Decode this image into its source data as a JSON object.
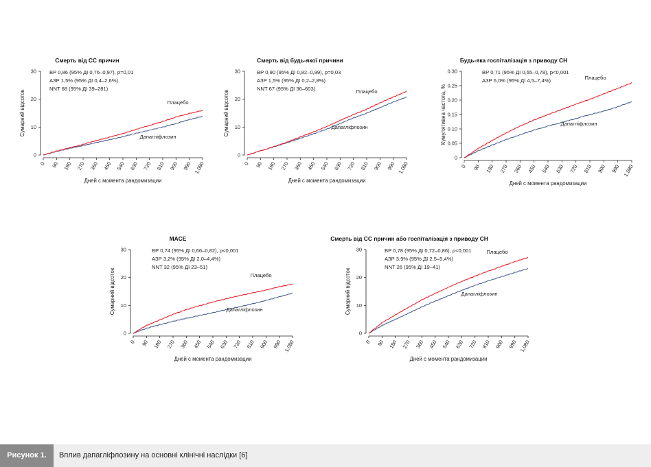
{
  "caption": {
    "tag": "Рисунок 1.",
    "text": "Вплив дапагліфлозину на основні клінічні наслідки [6]"
  },
  "colors": {
    "placebo": "#e8202a",
    "dapagliflozin": "#4a5f8f"
  },
  "chart_data": [
    {
      "type": "line",
      "title": "Смерть від СС причин",
      "stats": [
        "ВР 0,86 (95% ДІ 0,76–0,97), р=0,01",
        "АЗР 1,5% (95% ДІ 0,4–2,6%)",
        "NNT 68 (95% ДІ 39–281)"
      ],
      "ylabel": "Сумарний відсоток",
      "xlabel": "Дней с момента рандомизации",
      "xticks": [
        "0",
        "90",
        "180",
        "270",
        "360",
        "450",
        "540",
        "630",
        "720",
        "810",
        "900",
        "990",
        "1,080"
      ],
      "yticks": [
        "0",
        "10",
        "20",
        "30"
      ],
      "xlim": [
        0,
        1080
      ],
      "ylim": [
        0,
        30
      ],
      "x": [
        0,
        90,
        180,
        270,
        360,
        450,
        540,
        630,
        720,
        810,
        900,
        990,
        1080
      ],
      "series": [
        {
          "name": "Плацебо",
          "values": [
            0,
            1.4,
            2.6,
            3.8,
            5.2,
            6.4,
            7.7,
            9.2,
            10.6,
            12.0,
            13.6,
            14.9,
            16.0
          ]
        },
        {
          "name": "Дапагліфлозин",
          "values": [
            0,
            1.3,
            2.4,
            3.4,
            4.5,
            5.5,
            6.6,
            7.8,
            8.9,
            10.0,
            11.3,
            12.7,
            13.9
          ]
        }
      ]
    },
    {
      "type": "line",
      "title": "Смерть від будь-якої причини",
      "stats": [
        "ВР 0,90 (95% ДІ 0,82–0,99), р=0,03",
        "АЗР 1,5% (95% ДІ 0,2–2,8%)",
        "NNT 67 (95% ДІ 36–603)"
      ],
      "ylabel": "Сумарний відсоток",
      "xlabel": "Дней с момента рандомизации",
      "xticks": [
        "0",
        "90",
        "180",
        "270",
        "360",
        "450",
        "540",
        "630",
        "720",
        "810",
        "900",
        "990",
        "1,080"
      ],
      "yticks": [
        "0",
        "10",
        "20",
        "30"
      ],
      "xlim": [
        0,
        1080
      ],
      "ylim": [
        0,
        30
      ],
      "x": [
        0,
        90,
        180,
        270,
        360,
        450,
        540,
        630,
        720,
        810,
        900,
        990,
        1080
      ],
      "series": [
        {
          "name": "Плацебо",
          "values": [
            0,
            1.5,
            3.0,
            4.6,
            6.5,
            8.3,
            10.2,
            12.4,
            14.5,
            16.4,
            18.7,
            20.8,
            22.8
          ]
        },
        {
          "name": "Дапагліфлозин",
          "values": [
            0,
            1.5,
            2.9,
            4.4,
            6.0,
            7.6,
            9.3,
            11.3,
            13.3,
            15.0,
            17.0,
            19.0,
            20.8
          ]
        }
      ]
    },
    {
      "type": "line",
      "title": "Будь-яка госпіталізація з приводу СН",
      "stats": [
        "ВР 0,71 (95% ДІ 0,65–0,78), р<0,001",
        "АЗР 6,0% (95% ДІ 4,5–7,4%)"
      ],
      "ylabel": "Кумулятивна частота, %",
      "xlabel": "Дней с момента рандомизации",
      "xticks": [
        "0",
        "90",
        "180",
        "270",
        "360",
        "450",
        "540",
        "630",
        "720",
        "810",
        "900",
        "990",
        "1,080"
      ],
      "yticks": [
        "0",
        "0.05",
        "0.10",
        "0.15",
        "0.20",
        "0.25",
        "0.30"
      ],
      "xlim": [
        0,
        1080
      ],
      "ylim": [
        0,
        0.3
      ],
      "x": [
        0,
        90,
        180,
        270,
        360,
        450,
        540,
        630,
        720,
        810,
        900,
        990,
        1080
      ],
      "series": [
        {
          "name": "Плацебо",
          "values": [
            0,
            0.032,
            0.06,
            0.086,
            0.11,
            0.131,
            0.15,
            0.168,
            0.186,
            0.203,
            0.222,
            0.241,
            0.26
          ]
        },
        {
          "name": "Дапагліфлозин",
          "values": [
            0,
            0.024,
            0.044,
            0.063,
            0.08,
            0.096,
            0.11,
            0.123,
            0.136,
            0.15,
            0.162,
            0.177,
            0.195
          ]
        }
      ]
    },
    {
      "type": "line",
      "title": "MACE",
      "stats": [
        "ВР 0,74 (95% ДІ 0,66–0,82), р<0,001",
        "АЗР 3,2% (95% ДІ 2,0–4,4%)",
        "NNT 32 (95% ДІ 23–51)"
      ],
      "ylabel": "Сумарний відсоток",
      "xlabel": "Дней с момента рандомизации",
      "xticks": [
        "0",
        "90",
        "180",
        "270",
        "360",
        "450",
        "540",
        "630",
        "720",
        "810",
        "900",
        "990",
        "1,080"
      ],
      "yticks": [
        "0",
        "10",
        "20",
        "30"
      ],
      "xlim": [
        0,
        1080
      ],
      "ylim": [
        0,
        30
      ],
      "x": [
        0,
        90,
        180,
        270,
        360,
        450,
        540,
        630,
        720,
        810,
        900,
        990,
        1080
      ],
      "series": [
        {
          "name": "Плацебо",
          "values": [
            0,
            2.8,
            4.8,
            6.8,
            8.5,
            9.9,
            11.2,
            12.4,
            13.5,
            14.5,
            15.5,
            16.7,
            17.6
          ]
        },
        {
          "name": "Дапагліфлозин",
          "values": [
            0,
            1.8,
            3.1,
            4.3,
            5.4,
            6.4,
            7.4,
            8.5,
            9.5,
            10.6,
            11.8,
            13.1,
            14.4
          ]
        }
      ]
    },
    {
      "type": "line",
      "title": "Смерть від СС причин або госпіталізація з приводу СН",
      "stats": [
        "ВР 0,78 (95% ДІ 0,72–0,86), р<0,001",
        "АЗР 3,9% (95% ДІ 2,5–5,4%)",
        "NNT 26 (95% ДІ 19–41)"
      ],
      "ylabel": "Сумарний відсоток",
      "xlabel": "Дней с момента рандомизации",
      "xticks": [
        "0",
        "90",
        "180",
        "270",
        "360",
        "450",
        "540",
        "630",
        "720",
        "810",
        "900",
        "990",
        "1,080"
      ],
      "yticks": [
        "0",
        "10",
        "20",
        "30"
      ],
      "xlim": [
        0,
        1080
      ],
      "ylim": [
        0,
        30
      ],
      "x": [
        0,
        90,
        180,
        270,
        360,
        450,
        540,
        630,
        720,
        810,
        900,
        990,
        1080
      ],
      "series": [
        {
          "name": "Плацебо",
          "values": [
            0,
            3.8,
            6.6,
            9.3,
            12.0,
            14.3,
            16.5,
            18.6,
            20.5,
            22.3,
            24.0,
            25.7,
            27.2
          ]
        },
        {
          "name": "Дапагліфлозин",
          "values": [
            0,
            2.8,
            5.0,
            7.2,
            9.5,
            11.5,
            13.5,
            15.4,
            17.2,
            18.8,
            20.3,
            21.8,
            23.2
          ]
        }
      ]
    }
  ]
}
